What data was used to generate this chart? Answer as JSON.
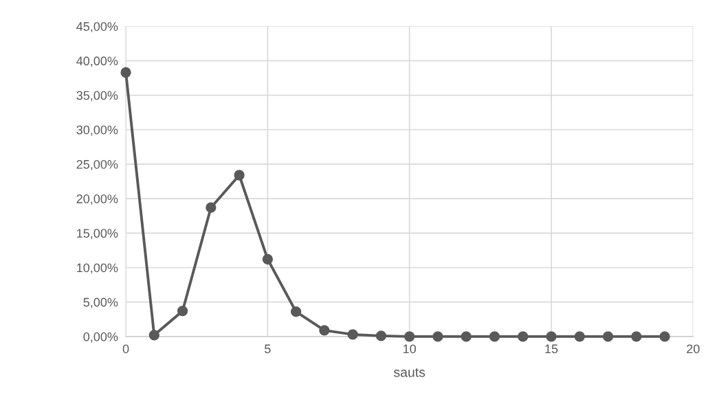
{
  "chart_data": {
    "type": "line",
    "xlabel": "sauts",
    "x": [
      0,
      1,
      2,
      3,
      4,
      5,
      6,
      7,
      8,
      9,
      10,
      11,
      12,
      13,
      14,
      15,
      16,
      17,
      18,
      19
    ],
    "series": [
      {
        "color": "#595959",
        "values": [
          38.3,
          0.2,
          3.7,
          18.7,
          23.4,
          11.2,
          3.6,
          0.9,
          0.3,
          0.1,
          0,
          0,
          0,
          0,
          0,
          0,
          0,
          0,
          0,
          0
        ]
      }
    ],
    "xlim": [
      0,
      20
    ],
    "xticks": [
      0,
      5,
      10,
      15,
      20
    ],
    "ylim": [
      0,
      45
    ],
    "yticks": [
      {
        "value": 0,
        "label": "0,00%"
      },
      {
        "value": 5,
        "label": "5,00%"
      },
      {
        "value": 10,
        "label": "10,00%"
      },
      {
        "value": 15,
        "label": "15,00%"
      },
      {
        "value": 20,
        "label": "20,00%"
      },
      {
        "value": 25,
        "label": "25,00%"
      },
      {
        "value": 30,
        "label": "30,00%"
      },
      {
        "value": 35,
        "label": "35,00%"
      },
      {
        "value": 40,
        "label": "40,00%"
      },
      {
        "value": 45,
        "label": "45,00%"
      }
    ],
    "grid": true,
    "marker": "circle",
    "line_style": "solid",
    "legend": false
  }
}
